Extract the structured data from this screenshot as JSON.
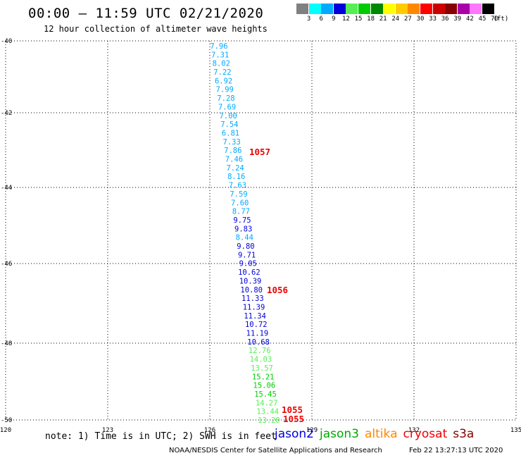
{
  "header": {
    "title": "00:00 – 11:59 UTC 02/21/2020",
    "subtitle": "12 hour collection of altimeter wave heights"
  },
  "scale": {
    "unit": "(ft)",
    "bins": [
      {
        "color": "#808080",
        "label": "3"
      },
      {
        "color": "#00ffff",
        "label": "6"
      },
      {
        "color": "#00aaff",
        "label": "9"
      },
      {
        "color": "#0000dd",
        "label": "12"
      },
      {
        "color": "#55ee55",
        "label": "15"
      },
      {
        "color": "#00cc00",
        "label": "18"
      },
      {
        "color": "#008800",
        "label": "21"
      },
      {
        "color": "#ffff00",
        "label": "24"
      },
      {
        "color": "#ffcc00",
        "label": "27"
      },
      {
        "color": "#ff8800",
        "label": "30"
      },
      {
        "color": "#ff0000",
        "label": "33"
      },
      {
        "color": "#cc0000",
        "label": "36"
      },
      {
        "color": "#880000",
        "label": "39"
      },
      {
        "color": "#aa00aa",
        "label": "42"
      },
      {
        "color": "#ff77ff",
        "label": "45"
      },
      {
        "color": "#000000",
        "label": "70"
      }
    ]
  },
  "map": {
    "lon_labels": [
      "120",
      "123",
      "126",
      "129",
      "132",
      "135"
    ],
    "lat_labels": [
      "-40",
      "-42",
      "-44",
      "-46",
      "-48",
      "-50"
    ]
  },
  "track": [
    {
      "text": "7.96",
      "color": "#00aaff"
    },
    {
      "text": "7.31",
      "color": "#00aaff"
    },
    {
      "text": "8.02",
      "color": "#00aaff"
    },
    {
      "text": "7.22",
      "color": "#00aaff"
    },
    {
      "text": "6.92",
      "color": "#00aaff"
    },
    {
      "text": "7.99",
      "color": "#00aaff"
    },
    {
      "text": "7.28",
      "color": "#00aaff"
    },
    {
      "text": "7.69",
      "color": "#00aaff"
    },
    {
      "text": "7.00",
      "color": "#00aaff"
    },
    {
      "text": "7.54",
      "color": "#00aaff"
    },
    {
      "text": "6.81",
      "color": "#00aaff"
    },
    {
      "text": "7.33",
      "color": "#00aaff"
    },
    {
      "text": "7.86",
      "color": "#00aaff"
    },
    {
      "text": "7.46",
      "color": "#00aaff"
    },
    {
      "text": "7.24",
      "color": "#00aaff"
    },
    {
      "text": "8.16",
      "color": "#00aaff"
    },
    {
      "text": "7.63",
      "color": "#00aaff"
    },
    {
      "text": "7.59",
      "color": "#00aaff"
    },
    {
      "text": "7.60",
      "color": "#00aaff"
    },
    {
      "text": "8.77",
      "color": "#00aaff"
    },
    {
      "text": "9.75",
      "color": "#0000dd"
    },
    {
      "text": "9.83",
      "color": "#0000dd"
    },
    {
      "text": "8.44",
      "color": "#00aaff"
    },
    {
      "text": "9.80",
      "color": "#0000dd"
    },
    {
      "text": "9.71",
      "color": "#0000dd"
    },
    {
      "text": "9.05",
      "color": "#0000dd"
    },
    {
      "text": "10.62",
      "color": "#0000dd"
    },
    {
      "text": "10.39",
      "color": "#0000dd"
    },
    {
      "text": "10.80",
      "color": "#0000dd"
    },
    {
      "text": "11.33",
      "color": "#0000dd"
    },
    {
      "text": "11.39",
      "color": "#0000dd"
    },
    {
      "text": "11.34",
      "color": "#0000dd"
    },
    {
      "text": "10.72",
      "color": "#0000dd"
    },
    {
      "text": "11.19",
      "color": "#0000dd"
    },
    {
      "text": "10.68",
      "color": "#0000dd"
    },
    {
      "text": "12.76",
      "color": "#55ee55"
    },
    {
      "text": "14.03",
      "color": "#55ee55"
    },
    {
      "text": "13.57",
      "color": "#55ee55"
    },
    {
      "text": "15.21",
      "color": "#00cc00"
    },
    {
      "text": "15.06",
      "color": "#00cc00"
    },
    {
      "text": "15.45",
      "color": "#00cc00"
    },
    {
      "text": "14.27",
      "color": "#55ee55"
    },
    {
      "text": "13.44",
      "color": "#55ee55"
    },
    {
      "text": "13.20",
      "color": "#55ee55"
    }
  ],
  "time_labels": [
    {
      "text": "1057",
      "color": "#ee0000"
    },
    {
      "text": "1056",
      "color": "#ee0000"
    },
    {
      "text": "1055",
      "color": "#ee0000"
    },
    {
      "text": "1055",
      "color": "#ee0000"
    }
  ],
  "note": "note:  1) Time is in UTC; 2) SWH is in feet",
  "legend": [
    {
      "name": "jason2",
      "color": "#0000dd"
    },
    {
      "name": "jason3",
      "color": "#00aa00"
    },
    {
      "name": "altika",
      "color": "#ff8800"
    },
    {
      "name": "cryosat",
      "color": "#ee0000"
    },
    {
      "name": "s3a",
      "color": "#880000"
    }
  ],
  "footer": {
    "credit": "NOAA/NESDIS Center for Satellite Applications and Research",
    "timestamp": "Feb 22 13:27:13 UTC 2020"
  }
}
